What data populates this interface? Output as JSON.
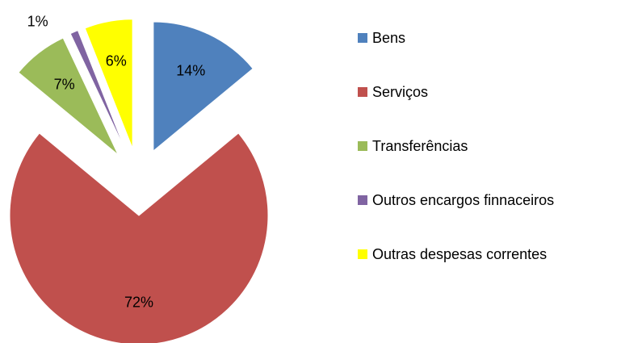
{
  "chart_data": {
    "type": "pie",
    "categories": [
      "Bens",
      "Serviços",
      "Transferências",
      "Outros encargos finnaceiros",
      "Outras despesas correntes"
    ],
    "values": [
      14,
      72,
      7,
      1,
      6
    ],
    "value_labels": [
      "14%",
      "72%",
      "7%",
      "1%",
      "6%"
    ],
    "colors": [
      "#4f81bd",
      "#c0504d",
      "#9bbb59",
      "#8064a2",
      "#ffff00"
    ],
    "exploded": true,
    "legend": "right"
  }
}
